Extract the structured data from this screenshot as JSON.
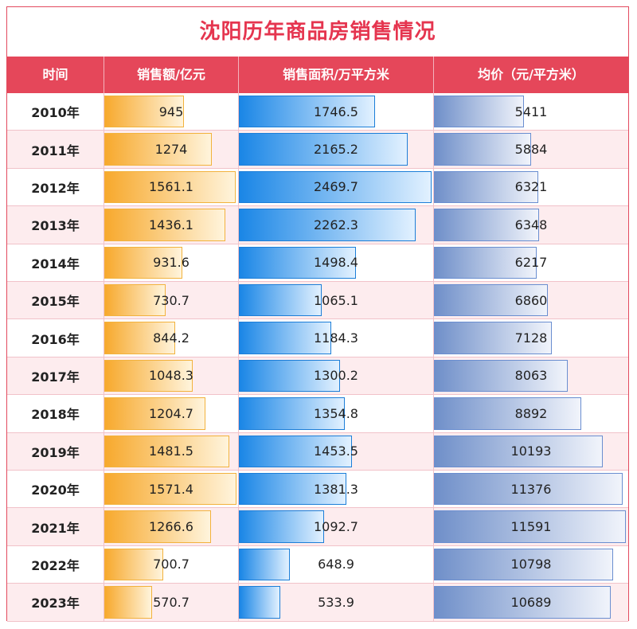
{
  "title": "沈阳历年商品房销售情况",
  "headers": [
    "时间",
    "销售额/亿元",
    "销售面积/万平方米",
    "均价（元/平方米）"
  ],
  "chart_data": {
    "type": "table",
    "title": "沈阳历年商品房销售情况",
    "columns": [
      "时间",
      "销售额/亿元",
      "销售面积/万平方米",
      "均价（元/平方米）"
    ],
    "rows": [
      {
        "year": "2010年",
        "sales": 945,
        "area": 1746.5,
        "price": 5411,
        "sales_label": "945",
        "area_label": "1746.5",
        "price_label": "5411"
      },
      {
        "year": "2011年",
        "sales": 1274,
        "area": 2165.2,
        "price": 5884,
        "sales_label": "1274",
        "area_label": "2165.2",
        "price_label": "5884"
      },
      {
        "year": "2012年",
        "sales": 1561.1,
        "area": 2469.7,
        "price": 6321,
        "sales_label": "1561.1",
        "area_label": "2469.7",
        "price_label": "6321"
      },
      {
        "year": "2013年",
        "sales": 1436.1,
        "area": 2262.3,
        "price": 6348,
        "sales_label": "1436.1",
        "area_label": "2262.3",
        "price_label": "6348"
      },
      {
        "year": "2014年",
        "sales": 931.6,
        "area": 1498.4,
        "price": 6217,
        "sales_label": "931.6",
        "area_label": "1498.4",
        "price_label": "6217"
      },
      {
        "year": "2015年",
        "sales": 730.7,
        "area": 1065.1,
        "price": 6860,
        "sales_label": "730.7",
        "area_label": "1065.1",
        "price_label": "6860"
      },
      {
        "year": "2016年",
        "sales": 844.2,
        "area": 1184.3,
        "price": 7128,
        "sales_label": "844.2",
        "area_label": "1184.3",
        "price_label": "7128"
      },
      {
        "year": "2017年",
        "sales": 1048.3,
        "area": 1300.2,
        "price": 8063,
        "sales_label": "1048.3",
        "area_label": "1300.2",
        "price_label": "8063"
      },
      {
        "year": "2018年",
        "sales": 1204.7,
        "area": 1354.8,
        "price": 8892,
        "sales_label": "1204.7",
        "area_label": "1354.8",
        "price_label": "8892"
      },
      {
        "year": "2019年",
        "sales": 1481.5,
        "area": 1453.5,
        "price": 10193,
        "sales_label": "1481.5",
        "area_label": "1453.5",
        "price_label": "10193"
      },
      {
        "year": "2020年",
        "sales": 1571.4,
        "area": 1381.3,
        "price": 11376,
        "sales_label": "1571.4",
        "area_label": "1381.3",
        "price_label": "11376"
      },
      {
        "year": "2021年",
        "sales": 1266.6,
        "area": 1092.7,
        "price": 11591,
        "sales_label": "1266.6",
        "area_label": "1092.7",
        "price_label": "11591"
      },
      {
        "year": "2022年",
        "sales": 700.7,
        "area": 648.9,
        "price": 10798,
        "sales_label": "700.7",
        "area_label": "648.9",
        "price_label": "10798"
      },
      {
        "year": "2023年",
        "sales": 570.7,
        "area": 533.9,
        "price": 10689,
        "sales_label": "570.7",
        "area_label": "533.9",
        "price_label": "10689"
      }
    ],
    "colors": {
      "title": "#e5354f",
      "header_bg": "#e5475a",
      "sales_bar": "#f7a92d",
      "area_bar": "#1a86e6",
      "price_bar": "#6f8fc9",
      "alt_row": "#fdecee"
    }
  }
}
